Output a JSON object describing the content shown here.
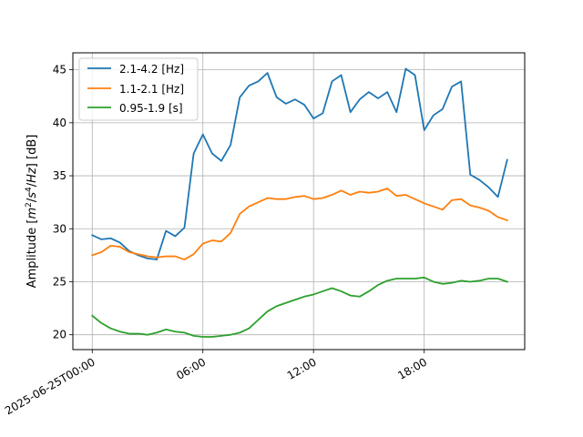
{
  "chart_data": {
    "type": "line",
    "title": "",
    "xlabel": "",
    "ylabel": {
      "prefix": "Amplitude [",
      "m": "m",
      "m_sup": "2",
      "slash1": "/",
      "s": "s",
      "s_sup": "4",
      "slash2": "/",
      "hz": "Hz",
      "suffix": "] [dB]"
    },
    "x_range_hours": [
      -1.05,
      23.45
    ],
    "ylim": [
      18.6,
      46.6
    ],
    "grid": true,
    "legend_position": "top-left",
    "x_ticks": [
      {
        "hour": 0,
        "label": "2025-06-25T00:00"
      },
      {
        "hour": 6,
        "label": "06:00"
      },
      {
        "hour": 12,
        "label": "12:00"
      },
      {
        "hour": 18,
        "label": "18:00"
      }
    ],
    "y_ticks": [
      20,
      25,
      30,
      35,
      40,
      45
    ],
    "x_hours": [
      0,
      0.5,
      1,
      1.5,
      2,
      2.5,
      3,
      3.5,
      4,
      4.5,
      5,
      5.5,
      6,
      6.5,
      7,
      7.5,
      8,
      8.5,
      9,
      9.5,
      10,
      10.5,
      11,
      11.5,
      12,
      12.5,
      13,
      13.5,
      14,
      14.5,
      15,
      15.5,
      16,
      16.5,
      17,
      17.5,
      18,
      18.5,
      19,
      19.5,
      20,
      20.5,
      21,
      21.5,
      22,
      22.5
    ],
    "series": [
      {
        "name": "2.1-4.2 [Hz]",
        "color": "#1f77b4",
        "values": [
          29.4,
          29.0,
          29.1,
          28.7,
          27.9,
          27.5,
          27.2,
          27.1,
          29.8,
          29.3,
          30.1,
          37.1,
          38.9,
          37.1,
          36.4,
          37.9,
          42.4,
          43.5,
          43.9,
          44.7,
          42.4,
          41.8,
          42.2,
          41.7,
          40.4,
          40.9,
          43.9,
          44.5,
          41.0,
          42.2,
          42.9,
          42.3,
          42.9,
          41.0,
          45.1,
          44.5,
          39.3,
          40.7,
          41.3,
          43.4,
          43.9,
          35.1,
          34.6,
          33.9,
          33.0,
          36.5
        ]
      },
      {
        "name": "1.1-2.1 [Hz]",
        "color": "#ff7f0e",
        "values": [
          27.5,
          27.8,
          28.4,
          28.3,
          27.8,
          27.6,
          27.4,
          27.3,
          27.4,
          27.4,
          27.1,
          27.6,
          28.6,
          28.9,
          28.8,
          29.6,
          31.4,
          32.1,
          32.5,
          32.9,
          32.8,
          32.8,
          33.0,
          33.1,
          32.8,
          32.9,
          33.2,
          33.6,
          33.2,
          33.5,
          33.4,
          33.5,
          33.8,
          33.1,
          33.2,
          32.8,
          32.4,
          32.1,
          31.8,
          32.7,
          32.8,
          32.2,
          32.0,
          31.7,
          31.1,
          30.8
        ]
      },
      {
        "name": "0.95-1.9 [s]",
        "color": "#2ca02c",
        "values": [
          21.8,
          21.1,
          20.6,
          20.3,
          20.1,
          20.1,
          20.0,
          20.2,
          20.5,
          20.3,
          20.2,
          19.9,
          19.8,
          19.8,
          19.9,
          20.0,
          20.2,
          20.6,
          21.4,
          22.2,
          22.7,
          23.0,
          23.3,
          23.6,
          23.8,
          24.1,
          24.4,
          24.1,
          23.7,
          23.6,
          24.1,
          24.7,
          25.1,
          25.3,
          25.3,
          25.3,
          25.4,
          25.0,
          24.8,
          24.9,
          25.1,
          25.0,
          25.1,
          25.3,
          25.3,
          25.0
        ]
      }
    ]
  }
}
